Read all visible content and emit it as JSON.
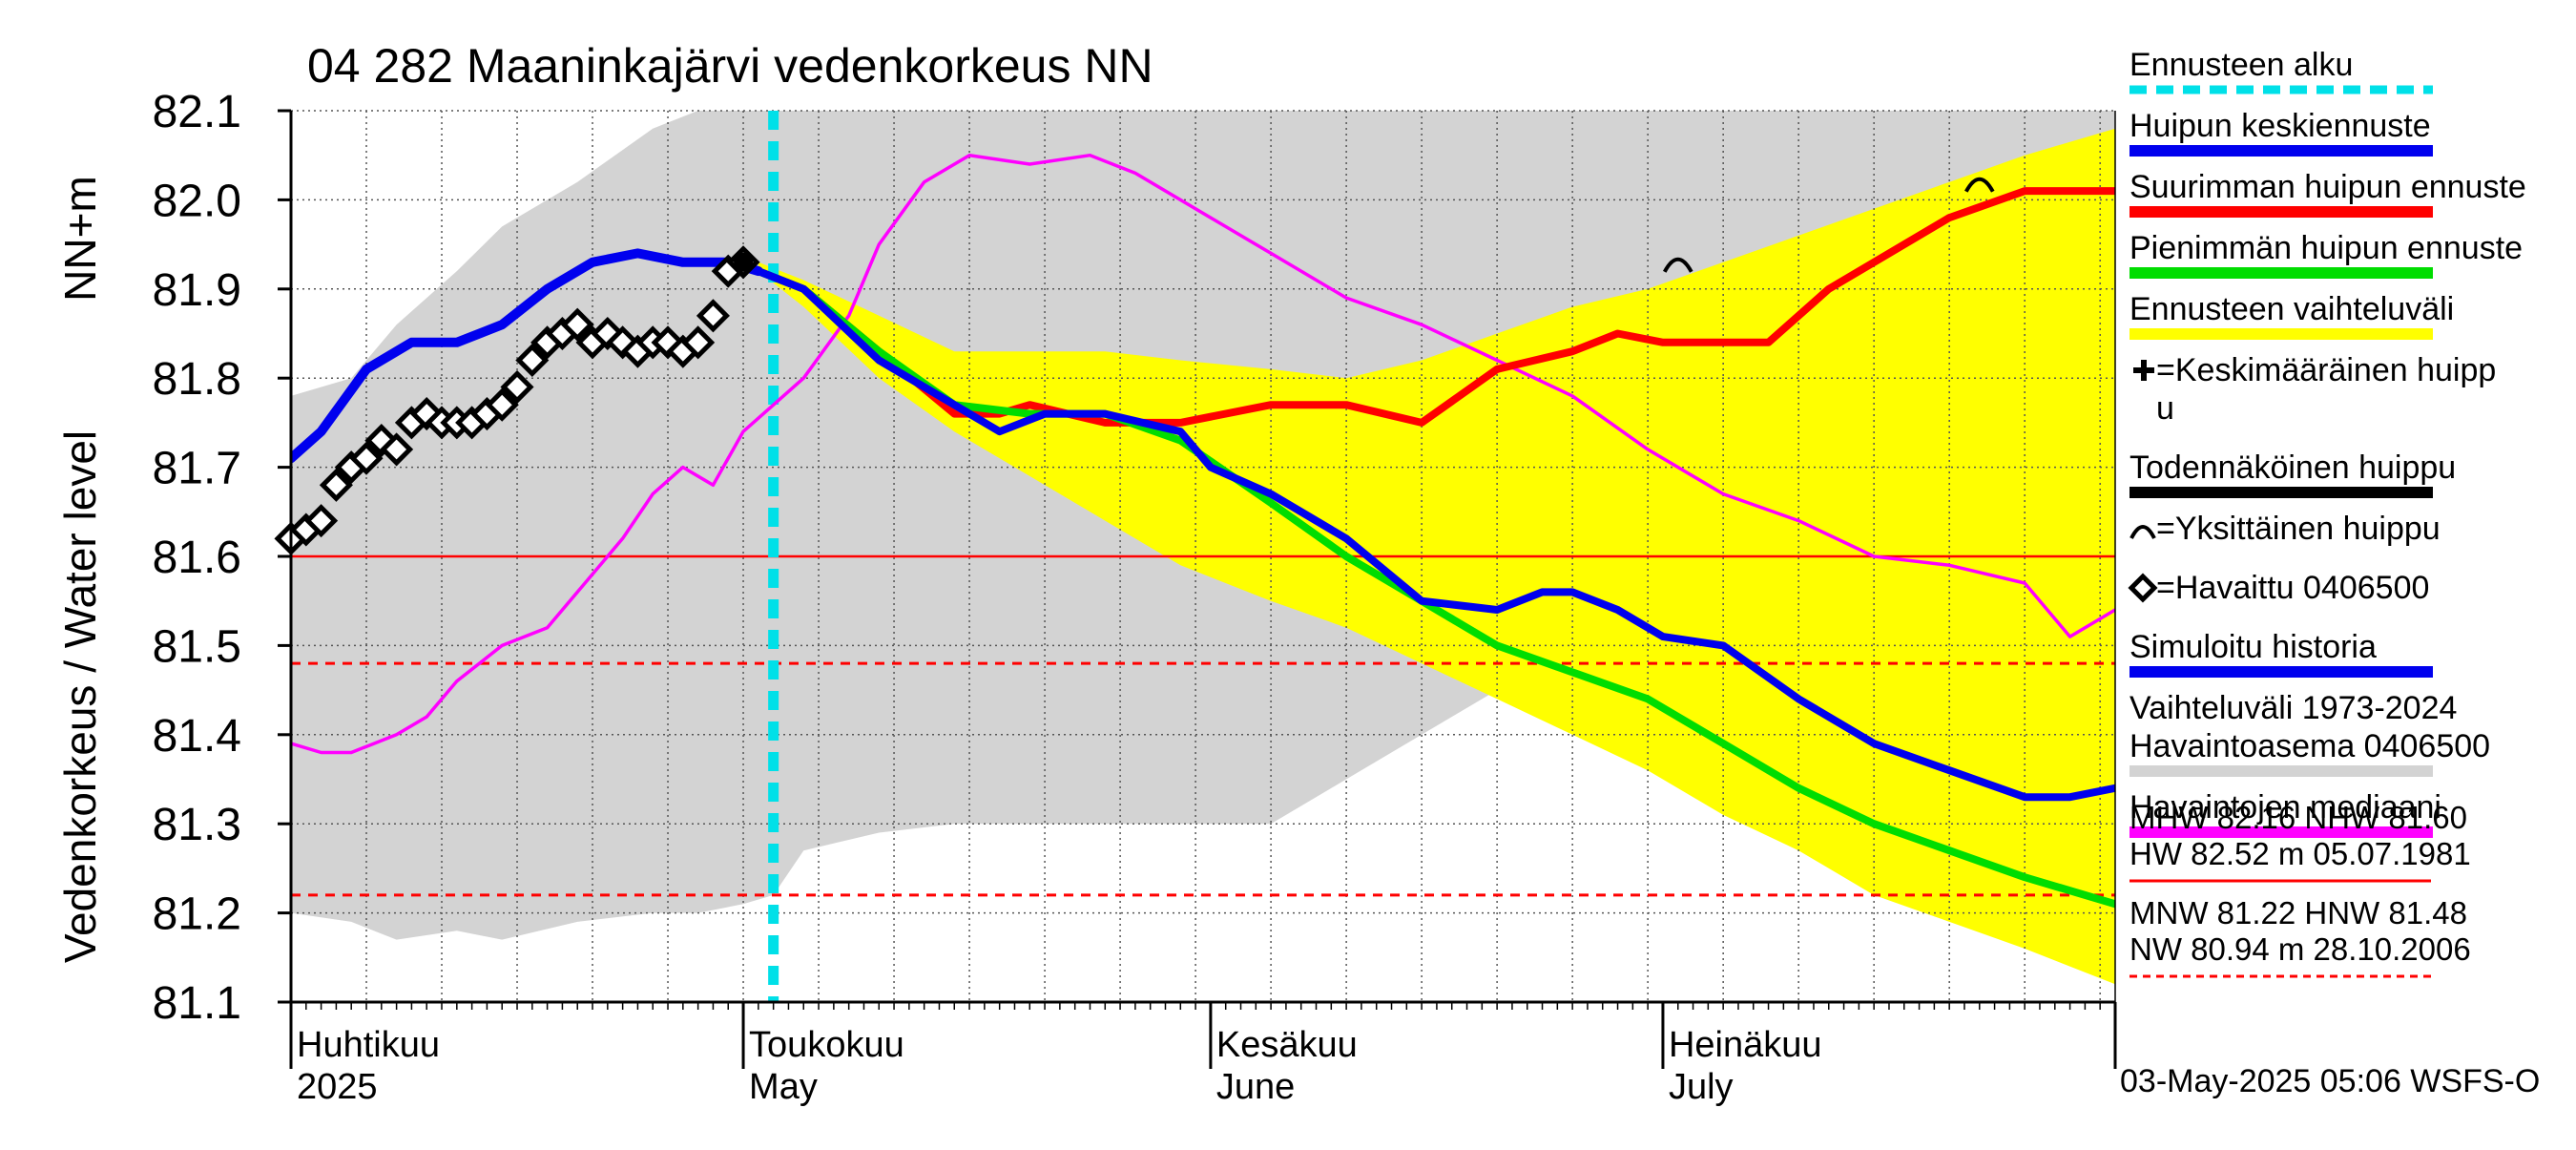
{
  "chart_data": {
    "type": "line",
    "title": "04 282 Maaninkajärvi vedenkorkeus NN",
    "ylabel_outer": "Vedenkorkeus / Water level",
    "ylabel_inner": "NN+m",
    "ylim": [
      81.1,
      82.1
    ],
    "yticks": [
      "82.1",
      "82.0",
      "81.9",
      "81.8",
      "81.7",
      "81.6",
      "81.5",
      "81.4",
      "81.3",
      "81.2",
      "81.1"
    ],
    "x_start": "2025-04-01",
    "x_end": "2025-07-31",
    "month_labels": [
      {
        "date": "2025-04-01",
        "fi": "Huhtikuu",
        "en": "2025"
      },
      {
        "date": "2025-05-01",
        "fi": "Toukokuu",
        "en": "May"
      },
      {
        "date": "2025-06-01",
        "fi": "Kesäkuu",
        "en": "June"
      },
      {
        "date": "2025-07-01",
        "fi": "Heinäkuu",
        "en": "July"
      }
    ],
    "forecast_start": "2025-05-03",
    "reference_lines": [
      {
        "name": "MHW/NHW",
        "value": 81.6,
        "color": "#ff0000",
        "style": "solid"
      },
      {
        "name": "HNW",
        "value": 81.48,
        "color": "#ff0000",
        "style": "dashed"
      },
      {
        "name": "MNW",
        "value": 81.22,
        "color": "#ff0000",
        "style": "dashed"
      }
    ],
    "series": [
      {
        "name": "Vaihteluväli 1973-2024 Havaintoasema 0406500",
        "kind": "band",
        "color": "#d3d3d3",
        "x": [
          "2025-04-01",
          "2025-04-05",
          "2025-04-08",
          "2025-04-12",
          "2025-04-15",
          "2025-04-20",
          "2025-04-25",
          "2025-04-28",
          "2025-05-01",
          "2025-05-03",
          "2025-05-05",
          "2025-05-10",
          "2025-05-15",
          "2025-05-20",
          "2025-05-25",
          "2025-05-30",
          "2025-06-05",
          "2025-06-10",
          "2025-06-15",
          "2025-06-20",
          "2025-06-25",
          "2025-06-30",
          "2025-07-05",
          "2025-07-10",
          "2025-07-15",
          "2025-07-20",
          "2025-07-25",
          "2025-07-31"
        ],
        "low": [
          81.2,
          81.19,
          81.17,
          81.18,
          81.17,
          81.19,
          81.2,
          81.2,
          81.21,
          81.22,
          81.27,
          81.29,
          81.3,
          81.3,
          81.3,
          81.3,
          81.3,
          81.35,
          81.4,
          81.45,
          81.4,
          81.38,
          81.35,
          81.33,
          81.32,
          81.3,
          81.27,
          81.25
        ],
        "high": [
          81.78,
          81.8,
          81.86,
          81.92,
          81.97,
          82.02,
          82.08,
          82.1,
          82.1,
          82.1,
          82.1,
          82.1,
          82.1,
          82.1,
          82.1,
          82.1,
          82.1,
          82.1,
          82.1,
          82.1,
          82.1,
          82.1,
          82.1,
          82.1,
          82.1,
          82.1,
          82.1,
          82.1
        ]
      },
      {
        "name": "Ennusteen vaihteluväli",
        "kind": "band",
        "color": "#ffff00",
        "x": [
          "2025-05-02",
          "2025-05-05",
          "2025-05-10",
          "2025-05-15",
          "2025-05-20",
          "2025-05-25",
          "2025-05-30",
          "2025-06-05",
          "2025-06-10",
          "2025-06-15",
          "2025-06-20",
          "2025-06-25",
          "2025-06-30",
          "2025-07-05",
          "2025-07-10",
          "2025-07-15",
          "2025-07-20",
          "2025-07-25",
          "2025-07-31"
        ],
        "low": [
          81.92,
          81.88,
          81.8,
          81.74,
          81.69,
          81.64,
          81.59,
          81.55,
          81.52,
          81.48,
          81.44,
          81.4,
          81.36,
          81.31,
          81.27,
          81.22,
          81.19,
          81.16,
          81.12
        ],
        "high": [
          81.93,
          81.91,
          81.87,
          81.83,
          81.83,
          81.83,
          81.82,
          81.81,
          81.8,
          81.82,
          81.85,
          81.88,
          81.9,
          81.93,
          81.96,
          81.99,
          82.02,
          82.05,
          82.08
        ]
      },
      {
        "name": "Havaintojen mediaani",
        "color": "#ff00ff",
        "x": [
          "2025-04-01",
          "2025-04-03",
          "2025-04-05",
          "2025-04-08",
          "2025-04-10",
          "2025-04-12",
          "2025-04-15",
          "2025-04-18",
          "2025-04-20",
          "2025-04-23",
          "2025-04-25",
          "2025-04-27",
          "2025-04-29",
          "2025-05-01",
          "2025-05-03",
          "2025-05-05",
          "2025-05-08",
          "2025-05-10",
          "2025-05-13",
          "2025-05-16",
          "2025-05-20",
          "2025-05-24",
          "2025-05-27",
          "2025-06-01",
          "2025-06-05",
          "2025-06-10",
          "2025-06-15",
          "2025-06-20",
          "2025-06-25",
          "2025-06-30",
          "2025-07-05",
          "2025-07-10",
          "2025-07-15",
          "2025-07-20",
          "2025-07-25",
          "2025-07-28",
          "2025-07-31"
        ],
        "y": [
          81.39,
          81.38,
          81.38,
          81.4,
          81.42,
          81.46,
          81.5,
          81.52,
          81.56,
          81.62,
          81.67,
          81.7,
          81.68,
          81.74,
          81.77,
          81.8,
          81.87,
          81.95,
          82.02,
          82.05,
          82.04,
          82.05,
          82.03,
          81.98,
          81.94,
          81.89,
          81.86,
          81.82,
          81.78,
          81.72,
          81.67,
          81.64,
          81.6,
          81.59,
          81.57,
          81.51,
          81.54
        ]
      },
      {
        "name": "Suurimman huipun ennuste",
        "color": "#ff0000",
        "x": [
          "2025-05-02",
          "2025-05-05",
          "2025-05-10",
          "2025-05-15",
          "2025-05-18",
          "2025-05-20",
          "2025-05-25",
          "2025-05-30",
          "2025-06-05",
          "2025-06-10",
          "2025-06-15",
          "2025-06-20",
          "2025-06-25",
          "2025-06-28",
          "2025-07-01",
          "2025-07-05",
          "2025-07-08",
          "2025-07-12",
          "2025-07-15",
          "2025-07-20",
          "2025-07-25",
          "2025-07-31"
        ],
        "y": [
          81.92,
          81.9,
          81.83,
          81.76,
          81.76,
          81.77,
          81.75,
          81.75,
          81.77,
          81.77,
          81.75,
          81.81,
          81.83,
          81.85,
          81.84,
          81.84,
          81.84,
          81.9,
          81.93,
          81.98,
          82.01,
          82.01
        ]
      },
      {
        "name": "Pienimmän huipun ennuste",
        "color": "#00dd00",
        "x": [
          "2025-05-02",
          "2025-05-05",
          "2025-05-10",
          "2025-05-15",
          "2025-05-20",
          "2025-05-25",
          "2025-05-30",
          "2025-06-05",
          "2025-06-10",
          "2025-06-15",
          "2025-06-20",
          "2025-06-25",
          "2025-06-30",
          "2025-07-05",
          "2025-07-10",
          "2025-07-15",
          "2025-07-20",
          "2025-07-25",
          "2025-07-31"
        ],
        "y": [
          81.92,
          81.9,
          81.83,
          81.77,
          81.76,
          81.76,
          81.73,
          81.66,
          81.6,
          81.55,
          81.5,
          81.47,
          81.44,
          81.39,
          81.34,
          81.3,
          81.27,
          81.24,
          81.21
        ]
      },
      {
        "name": "Huipun keskiennuste",
        "color": "#0000ee",
        "x": [
          "2025-05-02",
          "2025-05-05",
          "2025-05-10",
          "2025-05-15",
          "2025-05-18",
          "2025-05-21",
          "2025-05-25",
          "2025-05-30",
          "2025-06-01",
          "2025-06-05",
          "2025-06-10",
          "2025-06-15",
          "2025-06-20",
          "2025-06-23",
          "2025-06-25",
          "2025-06-28",
          "2025-07-01",
          "2025-07-05",
          "2025-07-10",
          "2025-07-15",
          "2025-07-20",
          "2025-07-25",
          "2025-07-28",
          "2025-07-31"
        ],
        "y": [
          81.92,
          81.9,
          81.82,
          81.77,
          81.74,
          81.76,
          81.76,
          81.74,
          81.7,
          81.67,
          81.62,
          81.55,
          81.54,
          81.56,
          81.56,
          81.54,
          81.51,
          81.5,
          81.44,
          81.39,
          81.36,
          81.33,
          81.33,
          81.34
        ]
      },
      {
        "name": "Simuloitu historia",
        "color": "#0000ee",
        "x": [
          "2025-04-01",
          "2025-04-03",
          "2025-04-06",
          "2025-04-09",
          "2025-04-12",
          "2025-04-15",
          "2025-04-18",
          "2025-04-21",
          "2025-04-24",
          "2025-04-27",
          "2025-04-30",
          "2025-05-02"
        ],
        "y": [
          81.71,
          81.74,
          81.81,
          81.84,
          81.84,
          81.86,
          81.9,
          81.93,
          81.94,
          81.93,
          81.93,
          81.92
        ]
      },
      {
        "name": "Havaittu 0406500",
        "color": "#000000",
        "marker": "diamond",
        "x": [
          "2025-04-01",
          "2025-04-02",
          "2025-04-03",
          "2025-04-04",
          "2025-04-05",
          "2025-04-06",
          "2025-04-07",
          "2025-04-08",
          "2025-04-09",
          "2025-04-10",
          "2025-04-11",
          "2025-04-12",
          "2025-04-13",
          "2025-04-14",
          "2025-04-15",
          "2025-04-16",
          "2025-04-17",
          "2025-04-18",
          "2025-04-19",
          "2025-04-20",
          "2025-04-21",
          "2025-04-22",
          "2025-04-23",
          "2025-04-24",
          "2025-04-25",
          "2025-04-26",
          "2025-04-27",
          "2025-04-28",
          "2025-04-29",
          "2025-04-30",
          "2025-05-01"
        ],
        "y": [
          81.62,
          81.63,
          81.64,
          81.68,
          81.7,
          81.71,
          81.73,
          81.72,
          81.75,
          81.76,
          81.75,
          81.75,
          81.75,
          81.76,
          81.77,
          81.79,
          81.82,
          81.84,
          81.85,
          81.86,
          81.84,
          81.85,
          81.84,
          81.83,
          81.84,
          81.84,
          81.83,
          81.84,
          81.87,
          81.92,
          81.93
        ]
      },
      {
        "name": "Yksittäinen huippu",
        "marker": "arc",
        "color": "#000000",
        "x": [
          "2025-07-02",
          "2025-07-22"
        ],
        "y": [
          81.93,
          82.02
        ]
      }
    ],
    "legend": {
      "position": "right",
      "items": [
        {
          "label": "Ennusteen alku",
          "kind": "dashed",
          "color": "#00e0e8"
        },
        {
          "label": "Huipun keskiennuste",
          "kind": "bar",
          "color": "#0000ee"
        },
        {
          "label": "Suurimman huipun ennuste",
          "kind": "bar",
          "color": "#ff0000"
        },
        {
          "label": "Pienimmän huipun ennuste",
          "kind": "bar",
          "color": "#00dd00"
        },
        {
          "label": "Ennusteen vaihteluväli",
          "kind": "bar",
          "color": "#ffff00"
        },
        {
          "label": "=Keskimääräinen huipp",
          "label2": "u",
          "kind": "plus",
          "color": "#000000"
        },
        {
          "label": "Todennäköinen huippu",
          "kind": "bar",
          "color": "#000000"
        },
        {
          "label": "=Yksittäinen huippu",
          "kind": "arc",
          "color": "#000000"
        },
        {
          "label": "=Havaittu 0406500",
          "kind": "diamond",
          "color": "#000000"
        },
        {
          "label": "Simuloitu historia",
          "kind": "bar",
          "color": "#0000ee"
        },
        {
          "label": "Vaihteluväli 1973-2024",
          "label2": " Havaintoasema 0406500",
          "kind": "bar",
          "color": "#d3d3d3"
        },
        {
          "label": "Havaintojen mediaani",
          "kind": "bar",
          "color": "#ff00ff"
        }
      ]
    },
    "stats": [
      {
        "line1": "MHW  82.16 NHW  81.60",
        "line2": "HW  82.52 m 05.07.1981",
        "rule": "solid"
      },
      {
        "line1": "MNW  81.22 HNW  81.48",
        "line2": "NW  80.94 m 28.10.2006",
        "rule": "dashed"
      }
    ],
    "footer": "03-May-2025 05:06 WSFS-O"
  }
}
